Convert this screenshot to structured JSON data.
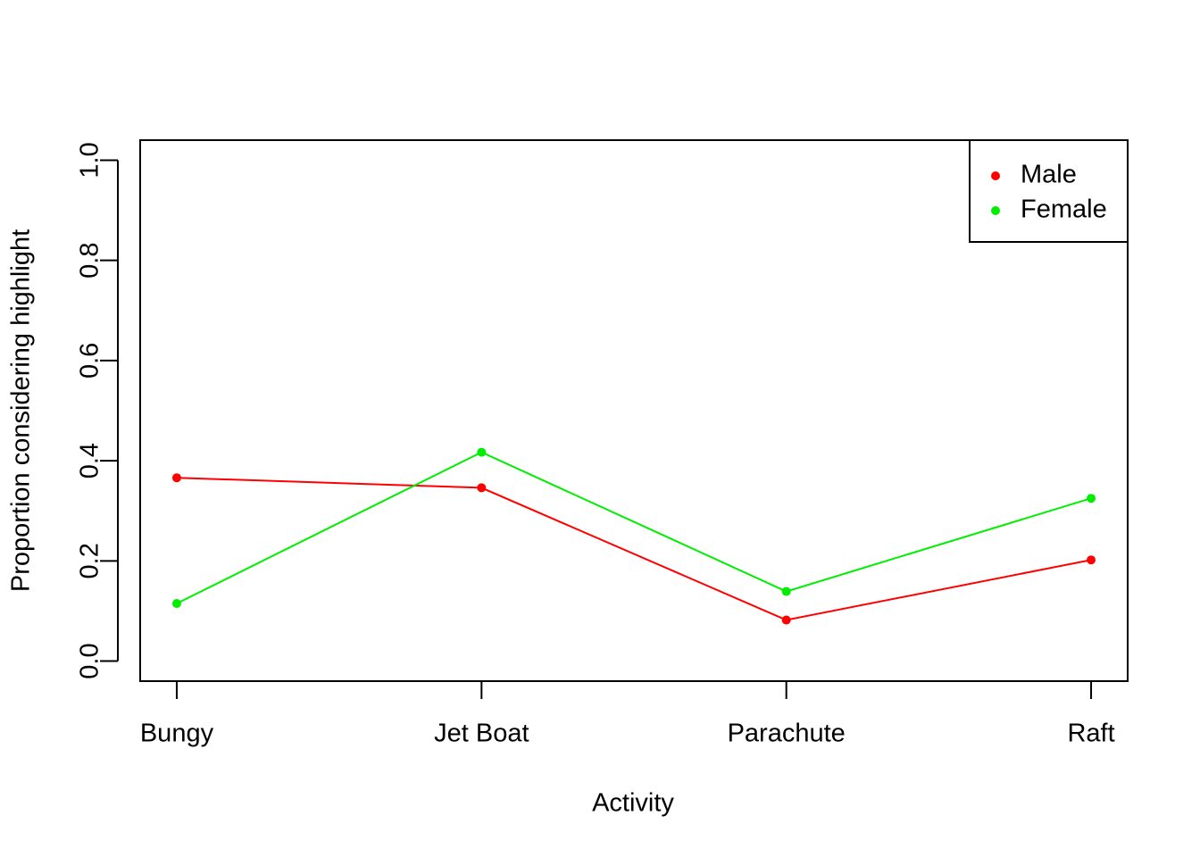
{
  "chart_data": {
    "type": "line",
    "x_label": "Activity",
    "y_label": "Proportion considering highlight",
    "categories": [
      "Bungy",
      "Jet Boat",
      "Parachute",
      "Raft"
    ],
    "series": [
      {
        "name": "Male",
        "color": "#ff0000",
        "values": [
          0.366,
          0.346,
          0.082,
          0.202
        ]
      },
      {
        "name": "Female",
        "color": "#00ee00",
        "values": [
          0.115,
          0.417,
          0.139,
          0.325
        ]
      }
    ],
    "ylim": [
      0,
      1
    ],
    "yticks": [
      {
        "value": 0,
        "label": "0.0"
      },
      {
        "value": 0.2,
        "label": "0.2"
      },
      {
        "value": 0.4,
        "label": "0.4"
      },
      {
        "value": 0.6,
        "label": "0.6"
      },
      {
        "value": 0.8,
        "label": "0.8"
      },
      {
        "value": 1,
        "label": "1.0"
      }
    ],
    "legend": "top-right"
  }
}
